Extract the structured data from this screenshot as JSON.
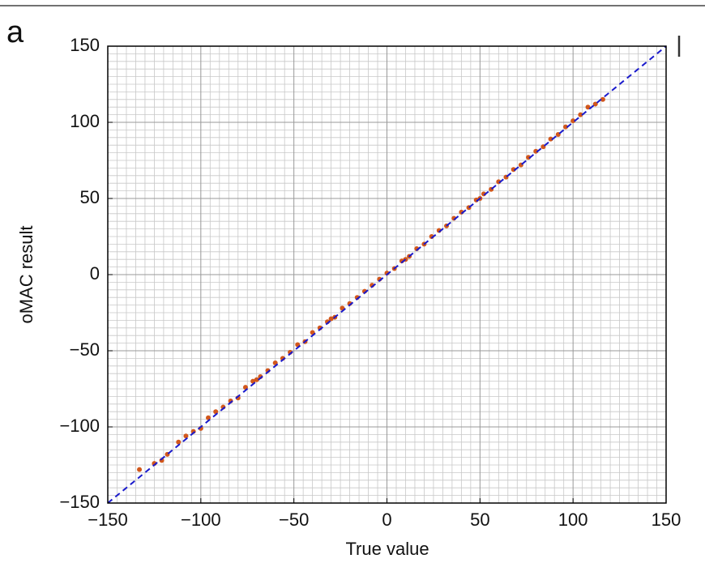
{
  "chart_data": {
    "type": "scatter",
    "panel_label": "a",
    "xlabel": "True value",
    "ylabel": "oMAC result",
    "xlim": [
      -150,
      150
    ],
    "ylim": [
      -150,
      150
    ],
    "xticks": [
      {
        "value": -150,
        "label": "−150"
      },
      {
        "value": -100,
        "label": "−100"
      },
      {
        "value": -50,
        "label": "−50"
      },
      0,
      50,
      100,
      150
    ],
    "yticks": [
      {
        "value": -150,
        "label": "−150"
      },
      {
        "value": -100,
        "label": "−100"
      },
      {
        "value": -50,
        "label": "−50"
      },
      0,
      50,
      100,
      150
    ],
    "minor_ticks": [
      -145,
      -140,
      -135,
      -130,
      -125,
      -120,
      -115,
      -110,
      -105,
      -95,
      -90,
      -85,
      -80,
      -75,
      -70,
      -65,
      -60,
      -55,
      -45,
      -40,
      -35,
      -30,
      -25,
      -20,
      -15,
      -10,
      -5,
      5,
      10,
      15,
      20,
      25,
      30,
      35,
      40,
      45,
      55,
      60,
      65,
      70,
      75,
      80,
      85,
      90,
      95,
      105,
      110,
      115,
      120,
      125,
      130,
      135,
      140,
      145
    ],
    "grid": true,
    "color": "#d2581c",
    "x": [
      -133,
      -125,
      -121,
      -118,
      -112,
      -108,
      -104,
      -100,
      -96,
      -92,
      -88,
      -84,
      -80,
      -76,
      -72,
      -68,
      -64,
      -60,
      -56,
      -52,
      -48,
      -44,
      -40,
      -36,
      -32,
      -28,
      -24,
      -20,
      -16,
      -12,
      -8,
      -4,
      0,
      4,
      8,
      12,
      16,
      20,
      24,
      28,
      32,
      36,
      40,
      44,
      48,
      52,
      56,
      60,
      64,
      68,
      72,
      76,
      80,
      84,
      88,
      92,
      96,
      100,
      104,
      108,
      112,
      116,
      -30,
      10,
      50,
      -70
    ],
    "y": [
      -128,
      -124,
      -122,
      -118,
      -110,
      -106,
      -103,
      -101,
      -94,
      -90,
      -87,
      -83,
      -81,
      -74,
      -70,
      -67,
      -63,
      -58,
      -55,
      -51,
      -46,
      -44,
      -38,
      -35,
      -31,
      -28,
      -22,
      -19,
      -15,
      -11,
      -7,
      -3,
      1,
      4,
      9,
      12,
      17,
      20,
      25,
      29,
      32,
      37,
      41,
      44,
      49,
      53,
      56,
      61,
      64,
      69,
      72,
      77,
      81,
      84,
      89,
      92,
      97,
      101,
      105,
      110,
      112,
      115,
      -29,
      10,
      50,
      -69
    ],
    "reference_line": {
      "x": [
        -150,
        150
      ],
      "y": [
        -150,
        150
      ],
      "color": "#1a1acc",
      "dashed": true
    }
  }
}
